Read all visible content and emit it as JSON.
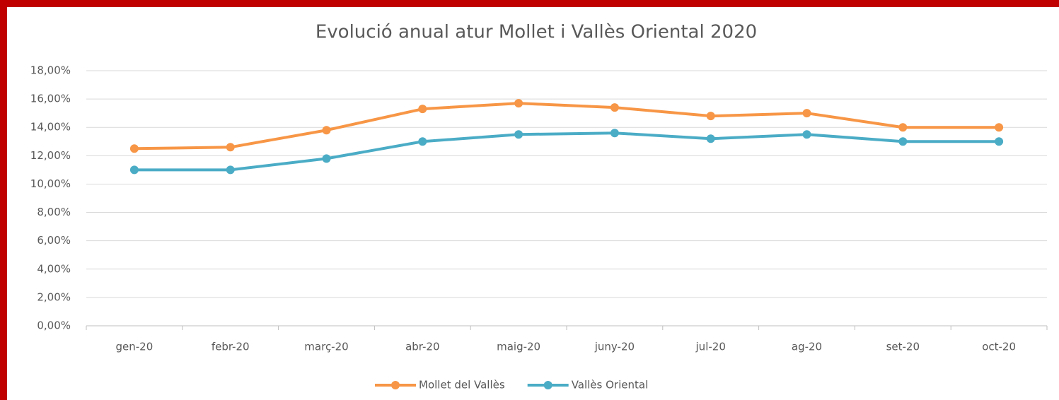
{
  "chart_data": {
    "type": "line",
    "title": "Evolució anual atur Mollet i Vallès Oriental 2020",
    "categories": [
      "gen-20",
      "febr-20",
      "març-20",
      "abr-20",
      "maig-20",
      "juny-20",
      "jul-20",
      "ag-20",
      "set-20",
      "oct-20"
    ],
    "series": [
      {
        "name": "Mollet del Vallès",
        "color": "#f79646",
        "values": [
          12.5,
          12.6,
          13.8,
          15.3,
          15.7,
          15.4,
          14.8,
          15.0,
          14.0,
          14.0
        ]
      },
      {
        "name": "Vallès Oriental",
        "color": "#4bacc6",
        "values": [
          11.0,
          11.0,
          11.8,
          13.0,
          13.5,
          13.6,
          13.2,
          13.5,
          13.0,
          13.0
        ]
      }
    ],
    "ylim": [
      0,
      18
    ],
    "yticks": [
      {
        "value": 0,
        "label": "0,00%"
      },
      {
        "value": 2,
        "label": "2,00%"
      },
      {
        "value": 4,
        "label": "4,00%"
      },
      {
        "value": 6,
        "label": "6,00%"
      },
      {
        "value": 8,
        "label": "8,00%"
      },
      {
        "value": 10,
        "label": "10,00%"
      },
      {
        "value": 12,
        "label": "12,00%"
      },
      {
        "value": 14,
        "label": "14,00%"
      },
      {
        "value": 16,
        "label": "16,00%"
      },
      {
        "value": 18,
        "label": "18,00%"
      }
    ],
    "grid": true,
    "legend": "bottom"
  }
}
